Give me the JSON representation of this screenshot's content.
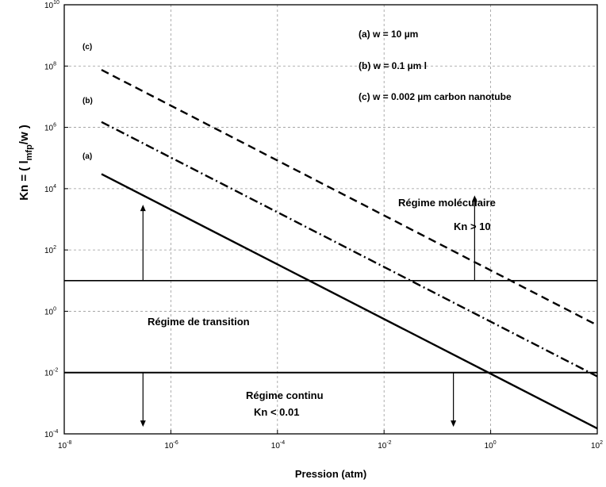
{
  "chart_data": {
    "type": "line",
    "title": "",
    "xlabel": "Pression (atm)",
    "ylabel_main": "Kn = ( l",
    "ylabel_sub": "mfp",
    "ylabel_tail": "/w )",
    "x_scale": "log",
    "y_scale": "log",
    "xlim": [
      1e-08,
      100
    ],
    "ylim": [
      0.0001,
      10000000000.0
    ],
    "grid": true,
    "x_ticks": [
      {
        "base": "10",
        "exp": "-8",
        "value": 1e-08
      },
      {
        "base": "10",
        "exp": "-6",
        "value": 1e-06
      },
      {
        "base": "10",
        "exp": "-4",
        "value": 0.0001
      },
      {
        "base": "10",
        "exp": "-2",
        "value": 0.01
      },
      {
        "base": "10",
        "exp": "0",
        "value": 1
      },
      {
        "base": "10",
        "exp": "2",
        "value": 100
      }
    ],
    "y_ticks": [
      {
        "base": "10",
        "exp": "-4",
        "value": 0.0001
      },
      {
        "base": "10",
        "exp": "-2",
        "value": 0.01
      },
      {
        "base": "10",
        "exp": "0",
        "value": 1
      },
      {
        "base": "10",
        "exp": "2",
        "value": 100
      },
      {
        "base": "10",
        "exp": "4",
        "value": 10000.0
      },
      {
        "base": "10",
        "exp": "6",
        "value": 1000000.0
      },
      {
        "base": "10",
        "exp": "8",
        "value": 100000000.0
      },
      {
        "base": "10",
        "exp": "10",
        "value": 10000000000.0
      }
    ],
    "series": [
      {
        "name": "(a)",
        "style": "solid",
        "x": [
          5e-08,
          100
        ],
        "y": [
          30000,
          0.00015
        ]
      },
      {
        "name": "(b)",
        "style": "dashdot",
        "x": [
          5e-08,
          100
        ],
        "y": [
          1500000,
          0.0075
        ]
      },
      {
        "name": "(c)",
        "style": "dashed",
        "x": [
          5e-08,
          100
        ],
        "y": [
          75000000,
          0.35
        ]
      }
    ],
    "thresholds": [
      10,
      0.01
    ],
    "legend": {
      "position": "top-right",
      "lines": [
        "(a) w = 10 µm",
        "(b) w = 0.1 µm l",
        "(c) w = 0.002 µm carbon nanotube"
      ]
    },
    "regions": {
      "molecular": {
        "title": "Régime moléculaire",
        "condition": "Kn > 10"
      },
      "transition": {
        "title": "Régime de transition"
      },
      "continuum": {
        "title": "Régime continu",
        "condition": "Kn < 0.01"
      }
    },
    "arrows": [
      {
        "x": 3e-07,
        "from": 10,
        "to": 3000,
        "direction": "up"
      },
      {
        "x": 0.5,
        "from": 10,
        "to": 6000,
        "direction": "up"
      },
      {
        "x": 3e-07,
        "from": 0.01,
        "to": 0.00017,
        "direction": "down"
      },
      {
        "x": 0.2,
        "from": 0.01,
        "to": 0.00017,
        "direction": "down"
      }
    ],
    "colors": {
      "lines": "#000000",
      "grid": "#9a9a9a",
      "background": "#ffffff"
    }
  }
}
